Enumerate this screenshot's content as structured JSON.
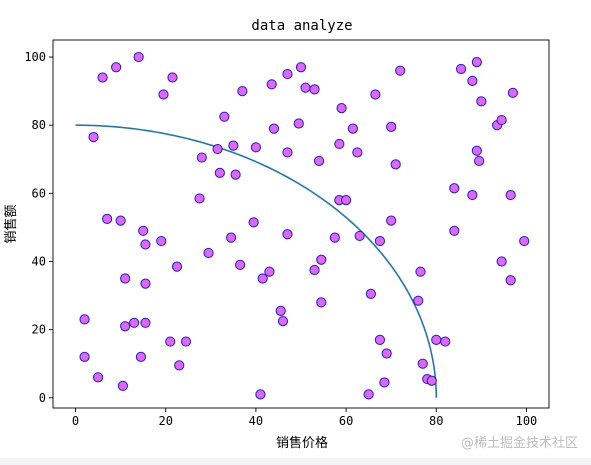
{
  "watermark": "@稀土掘金技术社区",
  "chart_data": {
    "type": "scatter",
    "title": "data analyze",
    "xlabel": "销售价格",
    "ylabel": "销售额",
    "xlim": [
      -5,
      105
    ],
    "ylim": [
      -3,
      105
    ],
    "xticks": [
      "0",
      "20",
      "40",
      "60",
      "80",
      "100"
    ],
    "yticks": [
      "0",
      "20",
      "40",
      "60",
      "80",
      "100"
    ],
    "grid": false,
    "legend": "none",
    "marker_face_color": "#e066ff",
    "marker_edge_color": "#1f1fbf",
    "line_color": "#1f77b4",
    "points": [
      [
        2,
        23
      ],
      [
        2,
        12
      ],
      [
        4,
        76.5
      ],
      [
        5,
        6
      ],
      [
        6,
        94
      ],
      [
        7,
        52.5
      ],
      [
        9,
        97
      ],
      [
        10,
        52
      ],
      [
        10.5,
        3.5
      ],
      [
        11,
        21
      ],
      [
        11,
        35
      ],
      [
        13,
        22
      ],
      [
        14,
        100
      ],
      [
        14.5,
        12
      ],
      [
        15,
        49
      ],
      [
        15.5,
        45
      ],
      [
        15.5,
        33.5
      ],
      [
        15.5,
        22
      ],
      [
        19,
        46
      ],
      [
        19.5,
        89
      ],
      [
        21,
        16.5
      ],
      [
        21.5,
        94
      ],
      [
        22.5,
        38.5
      ],
      [
        23,
        9.5
      ],
      [
        24.5,
        16.5
      ],
      [
        27.5,
        58.5
      ],
      [
        28,
        70.5
      ],
      [
        29.5,
        42.5
      ],
      [
        31.5,
        73
      ],
      [
        32,
        66
      ],
      [
        33,
        82.5
      ],
      [
        34.5,
        47
      ],
      [
        35,
        74
      ],
      [
        35.5,
        65.5
      ],
      [
        36.5,
        39
      ],
      [
        37,
        90
      ],
      [
        39.5,
        51.5
      ],
      [
        40,
        73.5
      ],
      [
        41,
        1
      ],
      [
        41.5,
        35
      ],
      [
        43,
        37
      ],
      [
        43.5,
        92
      ],
      [
        44,
        79
      ],
      [
        45.5,
        25.5
      ],
      [
        46,
        22.5
      ],
      [
        47,
        95
      ],
      [
        47,
        72
      ],
      [
        47,
        48
      ],
      [
        49.5,
        80.5
      ],
      [
        50,
        97
      ],
      [
        51,
        91
      ],
      [
        53,
        37.5
      ],
      [
        53,
        90.5
      ],
      [
        54,
        69.5
      ],
      [
        54.5,
        40.5
      ],
      [
        54.5,
        28
      ],
      [
        57.5,
        47
      ],
      [
        58.5,
        74.5
      ],
      [
        58.5,
        58
      ],
      [
        59,
        85
      ],
      [
        60,
        58
      ],
      [
        61.5,
        79
      ],
      [
        62.5,
        72
      ],
      [
        63,
        47.5
      ],
      [
        65,
        1
      ],
      [
        65.5,
        30.5
      ],
      [
        66.5,
        89
      ],
      [
        67.5,
        46
      ],
      [
        67.5,
        17
      ],
      [
        68.5,
        4.5
      ],
      [
        69,
        13
      ],
      [
        70,
        79.5
      ],
      [
        70,
        52
      ],
      [
        71,
        68.5
      ],
      [
        72,
        96
      ],
      [
        76,
        28.5
      ],
      [
        76.5,
        37
      ],
      [
        77,
        10
      ],
      [
        78,
        5.5
      ],
      [
        79,
        5
      ],
      [
        80,
        17
      ],
      [
        82,
        16.5
      ],
      [
        84,
        61.5
      ],
      [
        84,
        49
      ],
      [
        85.5,
        96.5
      ],
      [
        88,
        93
      ],
      [
        88,
        59.5
      ],
      [
        89,
        98.5
      ],
      [
        89,
        72.5
      ],
      [
        89.5,
        69.5
      ],
      [
        90,
        87
      ],
      [
        93.5,
        80
      ],
      [
        94.5,
        40
      ],
      [
        94.5,
        81.5
      ],
      [
        96.5,
        34.5
      ],
      [
        96.5,
        59.5
      ],
      [
        97,
        89.5
      ],
      [
        99.5,
        46
      ]
    ],
    "curve": {
      "type": "line",
      "equation": "y = sqrt(80^2 - x^2)",
      "x_range": [
        0,
        80
      ]
    }
  }
}
